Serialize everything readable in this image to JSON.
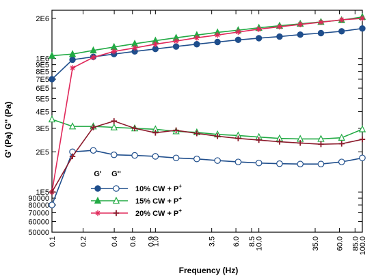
{
  "chart_data": {
    "type": "line",
    "xlabel": "Frequency (Hz)",
    "ylabel": "G' (Pa)  G'' (Pa)",
    "x_scale": "log",
    "y_scale": "log",
    "xlim": [
      0.1,
      100
    ],
    "ylim": [
      50000,
      2300000
    ],
    "grid": false,
    "legend_position": "center-left",
    "legend_headers": [
      "G'",
      "G''"
    ],
    "x_ticks": [
      "0.1",
      "0.2",
      "0.4",
      "0.6",
      "0.9",
      "1.0",
      "3.5",
      "6.0",
      "8.5",
      "10.0",
      "35.0",
      "60.0",
      "85.0",
      "100.0"
    ],
    "x_tick_values": [
      0.1,
      0.2,
      0.4,
      0.6,
      0.9,
      1.0,
      3.5,
      6.0,
      8.5,
      10.0,
      35.0,
      60.0,
      85.0,
      100.0
    ],
    "y_ticks": [
      "50000",
      "60000",
      "70000",
      "80000",
      "90000",
      "1E5",
      "2E5",
      "3E5",
      "4E5",
      "5E5",
      "6E5",
      "7E5",
      "8E5",
      "9E5",
      "1E6",
      "2E6"
    ],
    "y_tick_values": [
      50000,
      60000,
      70000,
      80000,
      90000,
      100000,
      200000,
      300000,
      400000,
      500000,
      600000,
      700000,
      800000,
      900000,
      1000000,
      2000000
    ],
    "x": [
      0.1,
      0.158,
      0.251,
      0.398,
      0.631,
      1.0,
      1.585,
      2.512,
      3.981,
      6.31,
      10.0,
      15.85,
      25.12,
      39.81,
      63.1,
      100.0
    ],
    "series": [
      {
        "name": "10% CW + P",
        "name_sup": "+",
        "modulus": "G'",
        "color": "#1f4e8c",
        "marker": "filled-circle",
        "values": [
          700000,
          980000,
          1030000,
          1080000,
          1130000,
          1180000,
          1230000,
          1280000,
          1330000,
          1380000,
          1420000,
          1460000,
          1510000,
          1550000,
          1600000,
          1680000
        ]
      },
      {
        "name": "10% CW + P",
        "name_sup": "+",
        "modulus": "G''",
        "color": "#1f4e8c",
        "marker": "open-circle",
        "values": [
          80000,
          200000,
          205000,
          190000,
          188000,
          185000,
          180000,
          177000,
          172000,
          168000,
          165000,
          163000,
          162000,
          162000,
          168000,
          180000
        ]
      },
      {
        "name": "15% CW + P",
        "name_sup": "+",
        "modulus": "G'",
        "color": "#22aa44",
        "marker": "filled-triangle",
        "values": [
          1050000,
          1080000,
          1150000,
          1220000,
          1290000,
          1360000,
          1430000,
          1500000,
          1570000,
          1630000,
          1700000,
          1760000,
          1820000,
          1880000,
          1940000,
          2050000
        ]
      },
      {
        "name": "15% CW + P",
        "name_sup": "+",
        "modulus": "G''",
        "color": "#22aa44",
        "marker": "open-triangle",
        "values": [
          350000,
          310000,
          310000,
          305000,
          300000,
          295000,
          285000,
          280000,
          270000,
          265000,
          258000,
          252000,
          250000,
          250000,
          255000,
          295000
        ]
      },
      {
        "name": "20% CW + P",
        "name_sup": "+",
        "modulus": "G'",
        "color": "#e0285a",
        "marker": "star",
        "values": [
          100000,
          850000,
          1020000,
          1130000,
          1200000,
          1280000,
          1350000,
          1430000,
          1500000,
          1580000,
          1660000,
          1730000,
          1800000,
          1870000,
          1950000,
          2000000
        ]
      },
      {
        "name": "20% CW + P",
        "name_sup": "+",
        "modulus": "G''",
        "color": "#8b1a2b",
        "marker": "plus",
        "values": [
          100000,
          185000,
          305000,
          340000,
          300000,
          278000,
          290000,
          275000,
          262000,
          252000,
          245000,
          238000,
          233000,
          228000,
          230000,
          248000
        ]
      }
    ]
  }
}
